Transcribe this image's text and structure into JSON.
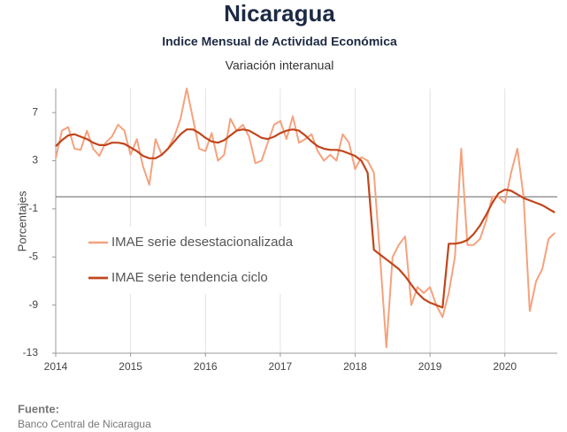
{
  "chart_data": {
    "type": "line",
    "title": "Nicaragua",
    "subtitle": "Indice Mensual de  Actividad Económica",
    "subtitle2": "Variación interanual",
    "y_label": "Porcentajes",
    "source_label": "Fuente:",
    "source": "Banco Central de Nicaragua",
    "x": [
      2014,
      2014.083,
      2014.167,
      2014.25,
      2014.333,
      2014.417,
      2014.5,
      2014.583,
      2014.667,
      2014.75,
      2014.833,
      2014.917,
      2015,
      2015.083,
      2015.167,
      2015.25,
      2015.333,
      2015.417,
      2015.5,
      2015.583,
      2015.667,
      2015.75,
      2015.833,
      2015.917,
      2016,
      2016.083,
      2016.167,
      2016.25,
      2016.333,
      2016.417,
      2016.5,
      2016.583,
      2016.667,
      2016.75,
      2016.833,
      2016.917,
      2017,
      2017.083,
      2017.167,
      2017.25,
      2017.333,
      2017.417,
      2017.5,
      2017.583,
      2017.667,
      2017.75,
      2017.833,
      2017.917,
      2018,
      2018.083,
      2018.167,
      2018.25,
      2018.333,
      2018.417,
      2018.5,
      2018.583,
      2018.667,
      2018.75,
      2018.833,
      2018.917,
      2019,
      2019.083,
      2019.167,
      2019.25,
      2019.333,
      2019.417,
      2019.5,
      2019.583,
      2019.667,
      2019.75,
      2019.833,
      2019.917,
      2020,
      2020.083,
      2020.167,
      2020.25,
      2020.333,
      2020.417,
      2020.5,
      2020.583,
      2020.667
    ],
    "series": [
      {
        "name": "IMAE serie desestacionalizada",
        "color": "#f5a27e",
        "width": 2,
        "values": [
          3.2,
          5.5,
          5.8,
          4.0,
          3.9,
          5.5,
          4.0,
          3.4,
          4.5,
          5.0,
          6.0,
          5.5,
          3.5,
          4.8,
          2.5,
          1.0,
          4.8,
          3.5,
          4.0,
          5.0,
          6.5,
          9.0,
          6.5,
          4.0,
          3.8,
          5.3,
          3.0,
          3.5,
          6.5,
          5.5,
          6.0,
          5.0,
          2.8,
          3.0,
          4.5,
          6.0,
          6.3,
          4.8,
          6.7,
          4.5,
          4.8,
          5.2,
          3.8,
          3.0,
          3.5,
          3.0,
          5.2,
          4.5,
          2.3,
          3.3,
          3.0,
          2.0,
          -5.0,
          -12.5,
          -5.0,
          -4.0,
          -3.3,
          -9.0,
          -7.5,
          -8.0,
          -7.5,
          -9.0,
          -10.0,
          -8.0,
          -5.0,
          4.0,
          -4.0,
          -4.0,
          -3.5,
          -2.0,
          0.0,
          0.0,
          -0.5,
          2.0,
          4.0,
          0.0,
          -9.5,
          -7.0,
          -6.0,
          -3.5,
          -3.0
        ]
      },
      {
        "name": "IMAE serie  tendencia ciclo",
        "color": "#c0461c",
        "width": 2.2,
        "values": [
          4.2,
          4.7,
          5.1,
          5.2,
          5.0,
          4.8,
          4.5,
          4.3,
          4.3,
          4.5,
          4.5,
          4.4,
          4.1,
          3.8,
          3.4,
          3.2,
          3.2,
          3.5,
          4.0,
          4.6,
          5.2,
          5.6,
          5.6,
          5.3,
          4.9,
          4.6,
          4.5,
          4.7,
          5.1,
          5.5,
          5.6,
          5.5,
          5.2,
          4.9,
          4.8,
          5.0,
          5.3,
          5.5,
          5.6,
          5.5,
          5.1,
          4.6,
          4.2,
          4.0,
          3.9,
          3.9,
          3.8,
          3.6,
          3.4,
          3.0,
          2.0,
          -4.4,
          -4.8,
          -5.2,
          -5.6,
          -6.0,
          -6.6,
          -7.3,
          -8.0,
          -8.5,
          -8.8,
          -9.0,
          -9.2,
          -3.9,
          -3.9,
          -3.8,
          -3.6,
          -3.1,
          -2.4,
          -1.5,
          -0.5,
          0.3,
          0.6,
          0.5,
          0.2,
          -0.1,
          -0.3,
          -0.5,
          -0.7,
          -1.0,
          -1.3
        ]
      }
    ],
    "xlim": [
      2014,
      2020.7
    ],
    "xticks": [
      2014,
      2015,
      2016,
      2017,
      2018,
      2019,
      2020
    ],
    "ylim": [
      -13,
      9
    ],
    "yticks": [
      7,
      3,
      -1,
      -5,
      -9,
      -13
    ],
    "reference_line": 0,
    "grid": "x"
  }
}
